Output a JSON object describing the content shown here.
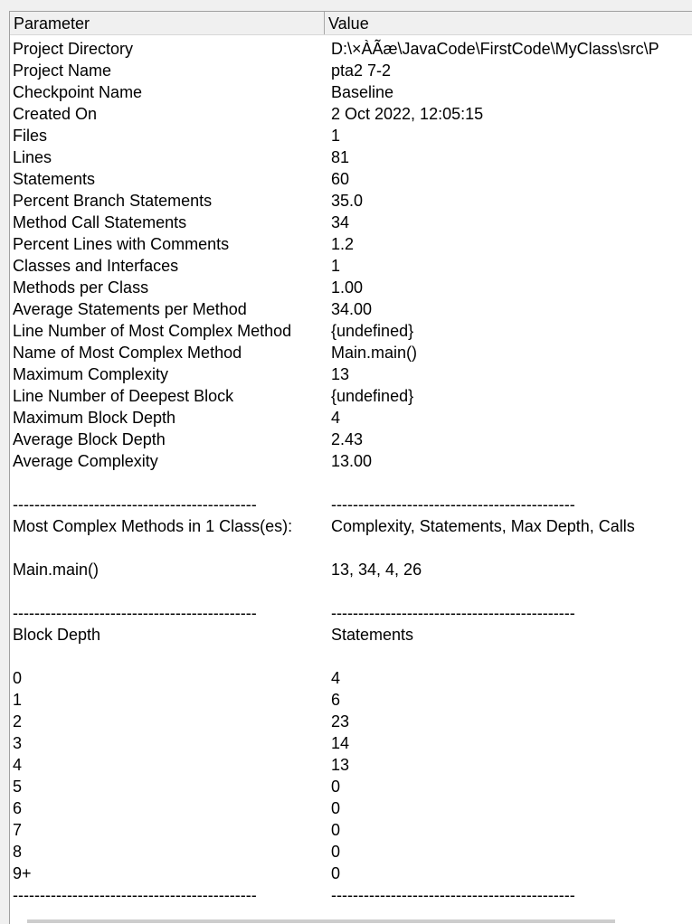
{
  "header": {
    "col1": "Parameter",
    "col2": "Value"
  },
  "rows": [
    [
      "Project Directory",
      "D:\\×ÀÃæ\\JavaCode\\FirstCode\\MyClass\\src\\P"
    ],
    [
      "Project Name",
      "pta2 7-2"
    ],
    [
      "Checkpoint Name",
      "Baseline"
    ],
    [
      "Created On",
      "2 Oct 2022, 12:05:15"
    ],
    [
      "Files",
      "1"
    ],
    [
      "Lines",
      "81"
    ],
    [
      "Statements",
      "60"
    ],
    [
      "Percent Branch Statements",
      "35.0"
    ],
    [
      "Method Call Statements",
      "34"
    ],
    [
      "Percent Lines with Comments",
      "1.2"
    ],
    [
      "Classes and Interfaces",
      "1"
    ],
    [
      "Methods per Class",
      "1.00"
    ],
    [
      "Average Statements per Method",
      "34.00"
    ],
    [
      "Line Number of Most Complex Method",
      "{undefined}"
    ],
    [
      "Name of Most Complex Method",
      "Main.main()"
    ],
    [
      "Maximum Complexity",
      "13"
    ],
    [
      "Line Number of Deepest Block",
      "{undefined}"
    ],
    [
      "Maximum Block Depth",
      "4"
    ],
    [
      "Average Block Depth",
      "2.43"
    ],
    [
      "Average Complexity",
      "13.00"
    ],
    [
      "",
      ""
    ],
    [
      "---------------------------------------------",
      "---------------------------------------------"
    ],
    [
      "Most Complex Methods in 1 Class(es):",
      "Complexity, Statements, Max Depth, Calls"
    ],
    [
      "",
      ""
    ],
    [
      "Main.main()",
      "13, 34, 4, 26"
    ],
    [
      "",
      ""
    ],
    [
      "---------------------------------------------",
      "---------------------------------------------"
    ],
    [
      "Block Depth",
      "Statements"
    ],
    [
      "",
      ""
    ],
    [
      "0",
      "4"
    ],
    [
      "1",
      "6"
    ],
    [
      "2",
      "23"
    ],
    [
      "3",
      "14"
    ],
    [
      "4",
      "13"
    ],
    [
      "5",
      "0"
    ],
    [
      "6",
      "0"
    ],
    [
      "7",
      "0"
    ],
    [
      "8",
      "0"
    ],
    [
      "9+",
      "0"
    ],
    [
      "---------------------------------------------",
      "---------------------------------------------"
    ]
  ]
}
